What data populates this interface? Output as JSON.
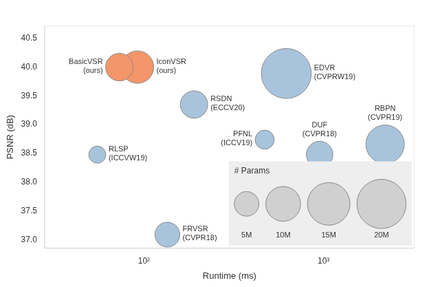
{
  "chart_data": {
    "type": "bubble",
    "xlabel": "Runtime (ms)",
    "ylabel": "PSNR (dB)",
    "labels": [
      "BasicVSR\n(ours)",
      "IconVSR\n(ours)",
      "RSDN\n(ECCV20)",
      "RLSP\n(ICCVW19)",
      "PFNL\n(ICCV19)",
      "FRVSR\n(CVPR18)",
      "EDVR\n(CVPRW19)",
      "DUF\n(CVPR18)",
      "RBPN\n(CVPR19)"
    ],
    "x": [
      73,
      92,
      190,
      55,
      470,
      135,
      620,
      950,
      2200
    ],
    "values": [
      40.0,
      40.0,
      39.35,
      38.48,
      38.74,
      37.09,
      39.89,
      38.48,
      38.66
    ],
    "sizes": [
      6.3,
      8.7,
      6.2,
      2.4,
      3.0,
      5.1,
      20.6,
      5.8,
      12.2
    ],
    "colors": [
      "#f4956a",
      "#f4956a",
      "#a8c4dc",
      "#a8c4dc",
      "#a8c4dc",
      "#a8c4dc",
      "#a8c4dc",
      "#a8c4dc",
      "#a8c4dc"
    ],
    "log": "x",
    "xlim": [
      28,
      3200
    ],
    "ylim": [
      36.85,
      40.72
    ],
    "xticks": [
      {
        "value": 100,
        "label": "10²"
      },
      {
        "value": 1000,
        "label": "10³"
      }
    ],
    "yticks": [
      {
        "value": 37,
        "label": "37.0"
      },
      37.5,
      {
        "value": 38,
        "label": "38.0"
      },
      38.5,
      {
        "value": 39,
        "label": "39.0"
      },
      39.5,
      {
        "value": 40,
        "label": "40.0"
      },
      40.5
    ],
    "grid": false,
    "legend": "lower right",
    "size_legend": {
      "title": "# Params",
      "values": [
        5,
        10,
        15,
        20
      ],
      "labels": [
        "5M",
        "10M",
        "15M",
        "20M"
      ]
    }
  }
}
